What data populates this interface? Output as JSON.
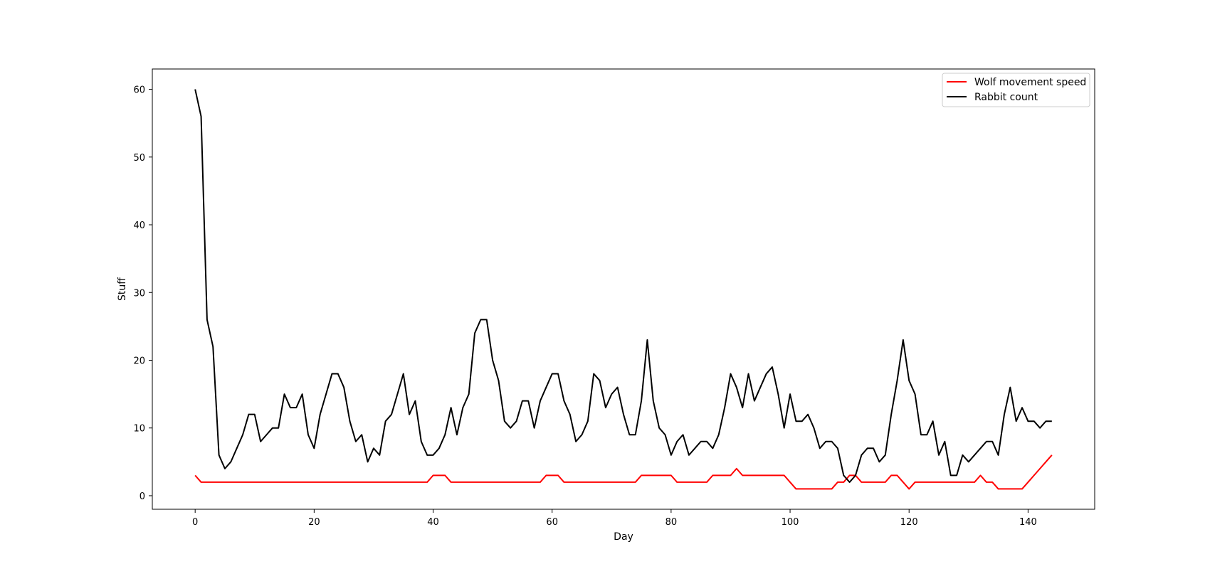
{
  "chart_data": {
    "type": "line",
    "title": "",
    "xlabel": "Day",
    "ylabel": "Stuff",
    "xlim": [
      -7.2,
      151.2
    ],
    "ylim": [
      -2,
      63
    ],
    "xticks": [
      0,
      20,
      40,
      60,
      80,
      100,
      120,
      140
    ],
    "yticks": [
      0,
      10,
      20,
      30,
      40,
      50,
      60
    ],
    "grid": false,
    "legend_position": "top-right",
    "series": [
      {
        "name": "Wolf movement speed",
        "color": "#ff0000",
        "values": [
          3,
          2,
          2,
          2,
          2,
          2,
          2,
          2,
          2,
          2,
          2,
          2,
          2,
          2,
          2,
          2,
          2,
          2,
          2,
          2,
          2,
          2,
          2,
          2,
          2,
          2,
          2,
          2,
          2,
          2,
          2,
          2,
          2,
          2,
          2,
          2,
          2,
          2,
          2,
          2,
          3,
          3,
          3,
          2,
          2,
          2,
          2,
          2,
          2,
          2,
          2,
          2,
          2,
          2,
          2,
          2,
          2,
          2,
          2,
          3,
          3,
          3,
          2,
          2,
          2,
          2,
          2,
          2,
          2,
          2,
          2,
          2,
          2,
          2,
          2,
          3,
          3,
          3,
          3,
          3,
          3,
          2,
          2,
          2,
          2,
          2,
          2,
          3,
          3,
          3,
          3,
          4,
          3,
          3,
          3,
          3,
          3,
          3,
          3,
          3,
          2,
          1,
          1,
          1,
          1,
          1,
          1,
          1,
          2,
          2,
          3,
          3,
          2,
          2,
          2,
          2,
          2,
          3,
          3,
          2,
          1,
          2,
          2,
          2,
          2,
          2,
          2,
          2,
          2,
          2,
          2,
          2,
          3,
          2,
          2,
          1,
          1,
          1,
          1,
          1,
          2,
          3,
          4,
          5,
          6
        ]
      },
      {
        "name": "Rabbit count",
        "color": "#000000",
        "values": [
          60,
          56,
          26,
          22,
          6,
          4,
          5,
          7,
          9,
          12,
          12,
          8,
          9,
          10,
          10,
          15,
          13,
          13,
          15,
          9,
          7,
          12,
          15,
          18,
          18,
          16,
          11,
          8,
          9,
          5,
          7,
          6,
          11,
          12,
          15,
          18,
          12,
          14,
          8,
          6,
          6,
          7,
          9,
          13,
          9,
          13,
          15,
          24,
          26,
          26,
          20,
          17,
          11,
          10,
          11,
          14,
          14,
          10,
          14,
          16,
          18,
          18,
          14,
          12,
          8,
          9,
          11,
          18,
          17,
          13,
          15,
          16,
          12,
          9,
          9,
          14,
          23,
          14,
          10,
          9,
          6,
          8,
          9,
          6,
          7,
          8,
          8,
          7,
          9,
          13,
          18,
          16,
          13,
          18,
          14,
          16,
          18,
          19,
          15,
          10,
          15,
          11,
          11,
          12,
          10,
          7,
          8,
          8,
          7,
          3,
          2,
          3,
          6,
          7,
          7,
          5,
          6,
          12,
          17,
          23,
          17,
          15,
          9,
          9,
          11,
          6,
          8,
          3,
          3,
          6,
          5,
          6,
          7,
          8,
          8,
          6,
          12,
          16,
          11,
          13,
          11,
          11,
          10,
          11,
          11
        ]
      }
    ]
  }
}
